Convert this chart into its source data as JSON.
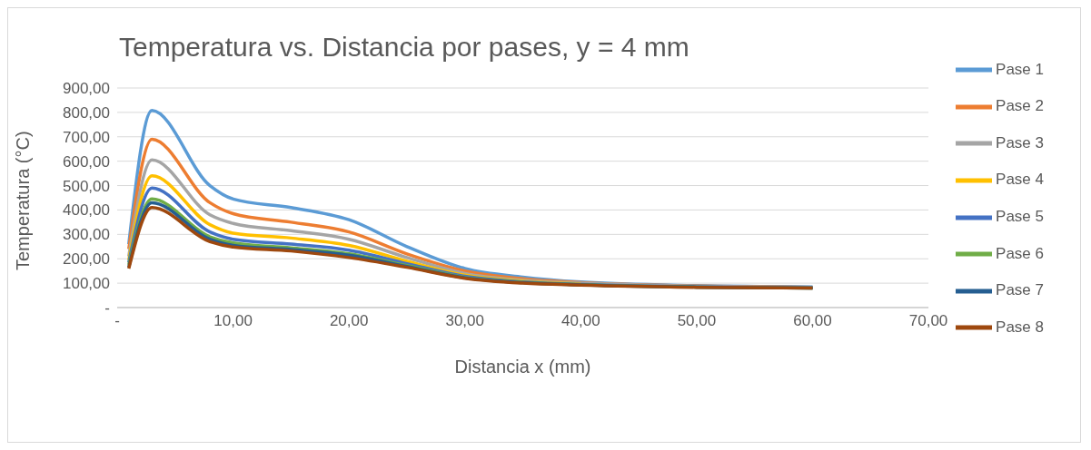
{
  "chart_data": {
    "type": "line",
    "title": "Temperatura vs. Distancia por pases, y = 4 mm",
    "xlabel": "Distancia x (mm)",
    "ylabel": "Temperatura (°C)",
    "x": [
      1,
      3,
      8,
      10,
      15,
      20,
      25,
      30,
      35,
      40,
      50,
      60
    ],
    "series": [
      {
        "name": "Pase 1",
        "color": "#5b9bd5",
        "values": [
          260,
          808,
          500,
          445,
          410,
          360,
          250,
          160,
          125,
          105,
          90,
          85
        ]
      },
      {
        "name": "Pase 2",
        "color": "#ed7d31",
        "values": [
          240,
          690,
          430,
          385,
          350,
          310,
          220,
          150,
          118,
          102,
          88,
          83
        ]
      },
      {
        "name": "Pase 3",
        "color": "#a5a5a5",
        "values": [
          210,
          605,
          380,
          345,
          315,
          280,
          205,
          140,
          112,
          100,
          87,
          82
        ]
      },
      {
        "name": "Pase 4",
        "color": "#ffc000",
        "values": [
          195,
          540,
          340,
          305,
          285,
          255,
          190,
          133,
          108,
          97,
          null,
          null
        ]
      },
      {
        "name": "Pase 5",
        "color": "#4472c4",
        "values": [
          185,
          490,
          310,
          280,
          260,
          235,
          180,
          128,
          105,
          95,
          85,
          81
        ]
      },
      {
        "name": "Pase 6",
        "color": "#70ad47",
        "values": [
          175,
          445,
          290,
          265,
          245,
          220,
          172,
          124,
          103,
          94,
          84,
          80
        ]
      },
      {
        "name": "Pase 7",
        "color": "#255e91",
        "values": [
          165,
          430,
          280,
          255,
          238,
          215,
          168,
          122,
          102,
          93,
          84,
          80
        ]
      },
      {
        "name": "Pase 8",
        "color": "#9e480e",
        "values": [
          160,
          410,
          270,
          248,
          232,
          205,
          165,
          120,
          100,
          92,
          83,
          80
        ]
      }
    ],
    "xlim": [
      0,
      70
    ],
    "xticks": [
      {
        "value": 0,
        "label": "-"
      },
      {
        "value": 10,
        "label": "10,00"
      },
      {
        "value": 20,
        "label": "20,00"
      },
      {
        "value": 30,
        "label": "30,00"
      },
      {
        "value": 40,
        "label": "40,00"
      },
      {
        "value": 50,
        "label": "50,00"
      },
      {
        "value": 60,
        "label": "60,00"
      },
      {
        "value": 70,
        "label": "70,00"
      }
    ],
    "ylim": [
      0,
      900
    ],
    "yticks": [
      {
        "value": 0,
        "label": "-"
      },
      {
        "value": 100,
        "label": "100,00"
      },
      {
        "value": 200,
        "label": "200,00"
      },
      {
        "value": 300,
        "label": "300,00"
      },
      {
        "value": 400,
        "label": "400,00"
      },
      {
        "value": 500,
        "label": "500,00"
      },
      {
        "value": 600,
        "label": "600,00"
      },
      {
        "value": 700,
        "label": "700,00"
      },
      {
        "value": 800,
        "label": "800,00"
      },
      {
        "value": 900,
        "label": "900,00"
      }
    ],
    "grid": "y",
    "legend": "right",
    "marker": "none",
    "line_style": "solid"
  }
}
